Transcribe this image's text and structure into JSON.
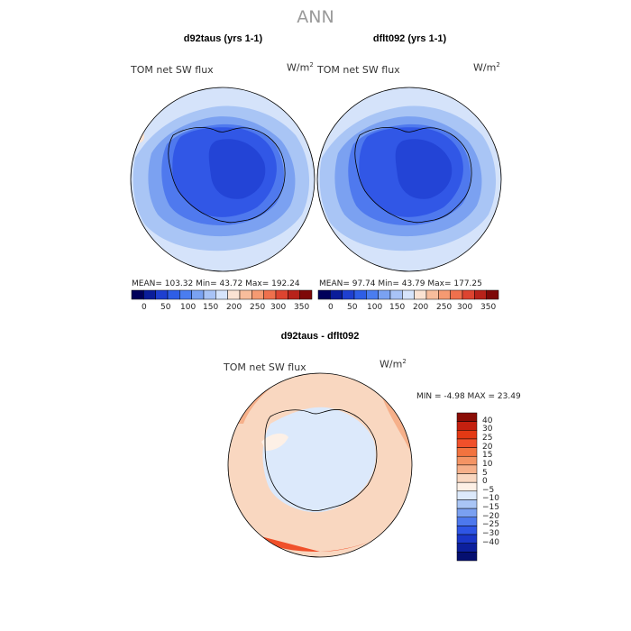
{
  "page_title": "ANN",
  "panels": [
    {
      "title": "d92taus (yrs 1-1)",
      "field": "TOM net SW flux",
      "units_base": "W/m",
      "units_exp": "2",
      "stats": "MEAN= 103.32   Min=  43.72   Max= 192.24"
    },
    {
      "title": "dflt092 (yrs 1-1)",
      "field": "TOM net SW flux",
      "units_base": "W/m",
      "units_exp": "2",
      "stats": "MEAN=  97.74   Min=  43.79   Max= 177.25"
    }
  ],
  "top_colorbar": {
    "labels": [
      "0",
      "50",
      "100",
      "150",
      "200",
      "250",
      "300",
      "350"
    ],
    "colors": [
      "#00005a",
      "#0a1d9a",
      "#1e3fd0",
      "#2e5ee6",
      "#4a7df0",
      "#7aa2f2",
      "#a8c3f6",
      "#d6e4fb",
      "#fbe3d3",
      "#f8bd9c",
      "#f59a72",
      "#ef704d",
      "#dd4430",
      "#b8221a",
      "#7e0808"
    ]
  },
  "diff_panel": {
    "title": "d92taus - dflt092",
    "field": "TOM net SW flux",
    "units_base": "W/m",
    "units_exp": "2",
    "minmax": "MIN =   -4.98  MAX =  23.49"
  },
  "diff_colorbar": {
    "labels": [
      "40",
      "30",
      "25",
      "20",
      "15",
      "10",
      "5",
      "0",
      "−5",
      "−10",
      "−15",
      "−20",
      "−25",
      "−30",
      "−40"
    ],
    "colors": [
      "#8a0d06",
      "#c4200f",
      "#e43914",
      "#f0502a",
      "#f2733f",
      "#f49464",
      "#f6b08a",
      "#f9d7c0",
      "#fdf0e6",
      "#dce9fb",
      "#a9c5f5",
      "#7aa0f1",
      "#4d78ed",
      "#2e55e5",
      "#1a36c8",
      "#0c1f9c",
      "#050f70"
    ]
  }
}
